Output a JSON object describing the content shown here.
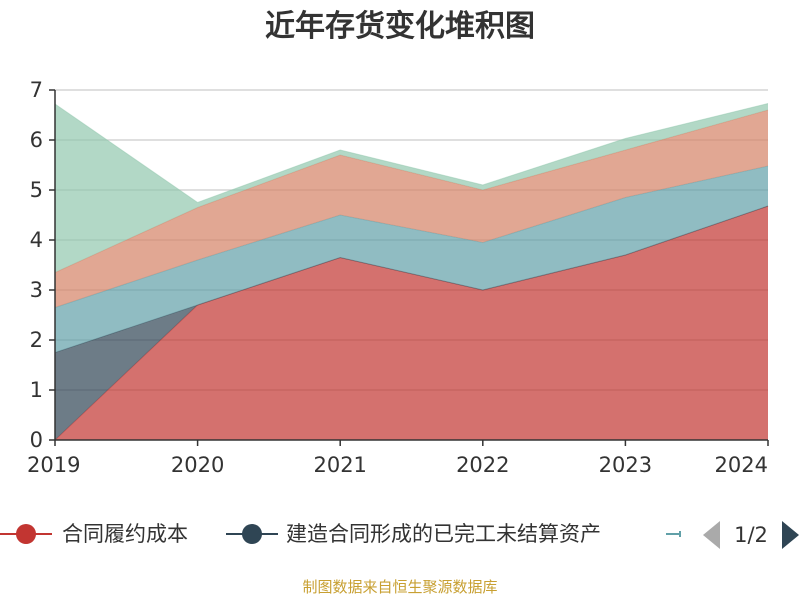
{
  "chart_data": {
    "type": "area",
    "stacked": true,
    "title": "近年存货变化堆积图",
    "ylabel": "",
    "xlabel": "",
    "categories": [
      "2019",
      "2020",
      "2021",
      "2022",
      "2023",
      "2024"
    ],
    "ylim": [
      0,
      7
    ],
    "yticks": [
      "0",
      "1",
      "2",
      "3",
      "4",
      "5",
      "6",
      "7"
    ],
    "grid": true,
    "series": [
      {
        "name": "合同履约成本",
        "color": "#c23531",
        "values": [
          0.0,
          2.7,
          3.65,
          3.0,
          3.7,
          4.68
        ]
      },
      {
        "name": "建造合同形成的已完工未结算资产",
        "color": "#2f4554",
        "values": [
          1.75,
          0.0,
          0.0,
          0.0,
          0.0,
          0.0
        ]
      },
      {
        "name": "",
        "color": "#61a0a8",
        "values": [
          0.9,
          0.9,
          0.85,
          0.95,
          1.15,
          0.8
        ]
      },
      {
        "name": "",
        "color": "#d48265",
        "values": [
          0.7,
          1.05,
          1.2,
          1.05,
          0.95,
          1.12
        ]
      },
      {
        "name": "",
        "color": "#91c7ae",
        "values": [
          3.37,
          0.1,
          0.1,
          0.1,
          0.23,
          0.13
        ]
      }
    ],
    "legend": {
      "placement": "bottom",
      "page": "1/2"
    },
    "source_note": "制图数据来自恒生聚源数据库"
  }
}
